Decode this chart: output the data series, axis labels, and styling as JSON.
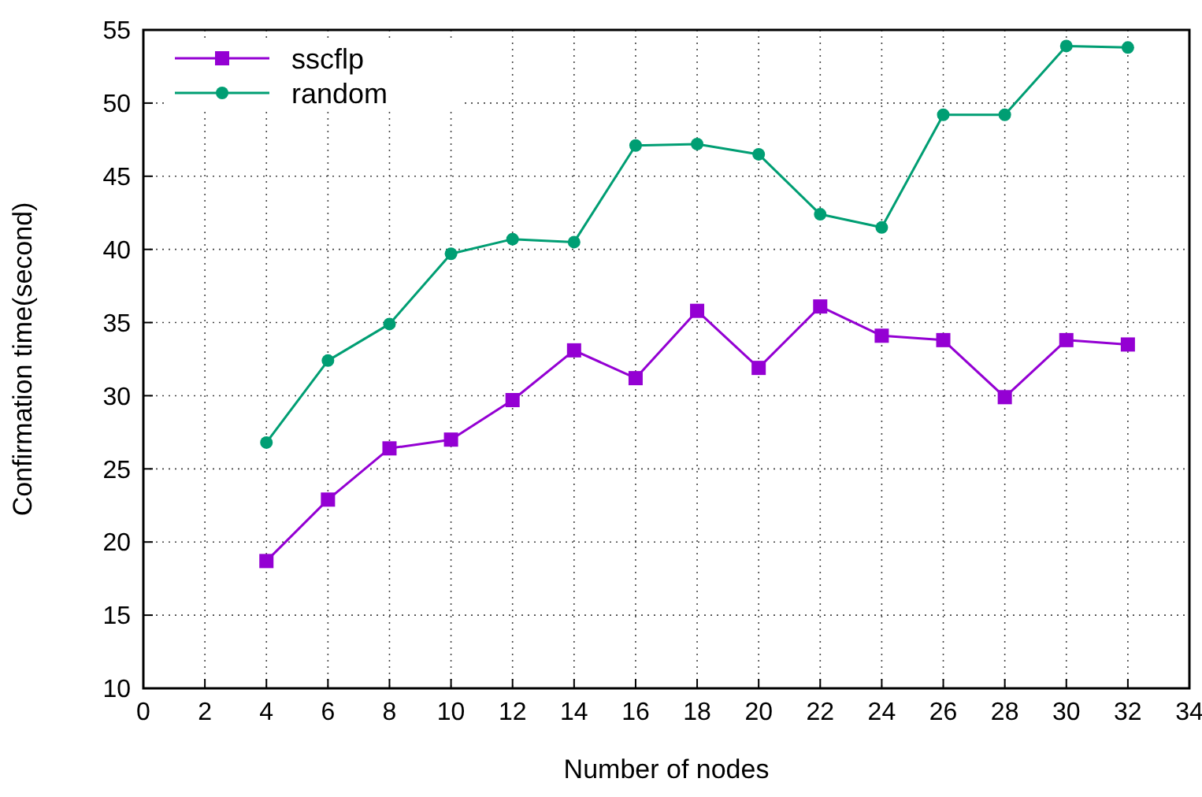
{
  "chart_data": {
    "type": "line",
    "xlabel": "Number of nodes",
    "ylabel": "Confirmation time(second)",
    "x": [
      4,
      6,
      8,
      10,
      12,
      14,
      16,
      18,
      20,
      22,
      24,
      26,
      28,
      30,
      32
    ],
    "series": [
      {
        "name": "sscflp",
        "color": "#9400d3",
        "marker": "square",
        "values": [
          18.7,
          22.9,
          26.4,
          27.0,
          29.7,
          33.1,
          31.2,
          35.8,
          31.9,
          36.1,
          34.1,
          33.8,
          29.9,
          33.8,
          33.5
        ]
      },
      {
        "name": "random",
        "color": "#009e73",
        "marker": "circle",
        "values": [
          26.8,
          32.4,
          34.9,
          39.7,
          40.7,
          40.5,
          47.1,
          47.2,
          46.5,
          42.4,
          41.5,
          49.2,
          49.2,
          53.9,
          53.8
        ]
      }
    ],
    "xlim": [
      0,
      34
    ],
    "xticks": [
      0,
      2,
      4,
      6,
      8,
      10,
      12,
      14,
      16,
      18,
      20,
      22,
      24,
      26,
      28,
      30,
      32,
      34
    ],
    "ylim": [
      10,
      55
    ],
    "yticks": [
      10,
      15,
      20,
      25,
      30,
      35,
      40,
      45,
      50,
      55
    ],
    "grid": true,
    "legend": "top left"
  }
}
